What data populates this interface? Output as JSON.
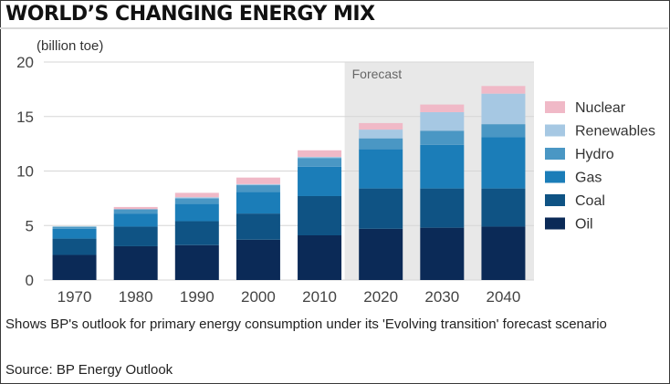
{
  "header": {
    "title": "WORLD’S CHANGING ENERGY MIX"
  },
  "chart_data": {
    "type": "bar",
    "stacked": true,
    "title": "WORLD’S CHANGING ENERGY MIX",
    "ylabel": "(billion toe)",
    "xlabel": "",
    "ylim": [
      0,
      20
    ],
    "yticks": [
      0,
      5,
      10,
      15,
      20
    ],
    "grid": true,
    "legend_position": "right",
    "forecast_label": "Forecast",
    "forecast_start": "2020",
    "categories": [
      "1970",
      "1980",
      "1990",
      "2000",
      "2010",
      "2020",
      "2030",
      "2040"
    ],
    "series": [
      {
        "name": "Oil",
        "color": "#0b2a57",
        "values": [
          2.3,
          3.1,
          3.2,
          3.7,
          4.1,
          4.7,
          4.8,
          4.9
        ]
      },
      {
        "name": "Coal",
        "color": "#0f5384",
        "values": [
          1.5,
          1.8,
          2.2,
          2.4,
          3.6,
          3.7,
          3.6,
          3.5
        ]
      },
      {
        "name": "Gas",
        "color": "#1b7db8",
        "values": [
          0.9,
          1.2,
          1.6,
          2.0,
          2.7,
          3.6,
          4.0,
          4.7
        ]
      },
      {
        "name": "Hydro",
        "color": "#4a97c4",
        "values": [
          0.2,
          0.4,
          0.5,
          0.6,
          0.8,
          1.0,
          1.3,
          1.2
        ]
      },
      {
        "name": "Renewables",
        "color": "#a6c8e3",
        "values": [
          0.0,
          0.0,
          0.1,
          0.1,
          0.1,
          0.8,
          1.7,
          2.8
        ]
      },
      {
        "name": "Nuclear",
        "color": "#f0b9c7",
        "values": [
          0.0,
          0.2,
          0.4,
          0.6,
          0.6,
          0.6,
          0.7,
          0.7
        ]
      }
    ]
  },
  "footer": {
    "note": "Shows BP's outlook for primary energy consumption under its 'Evolving transition' forecast scenario",
    "source": "Source: BP Energy Outlook"
  }
}
